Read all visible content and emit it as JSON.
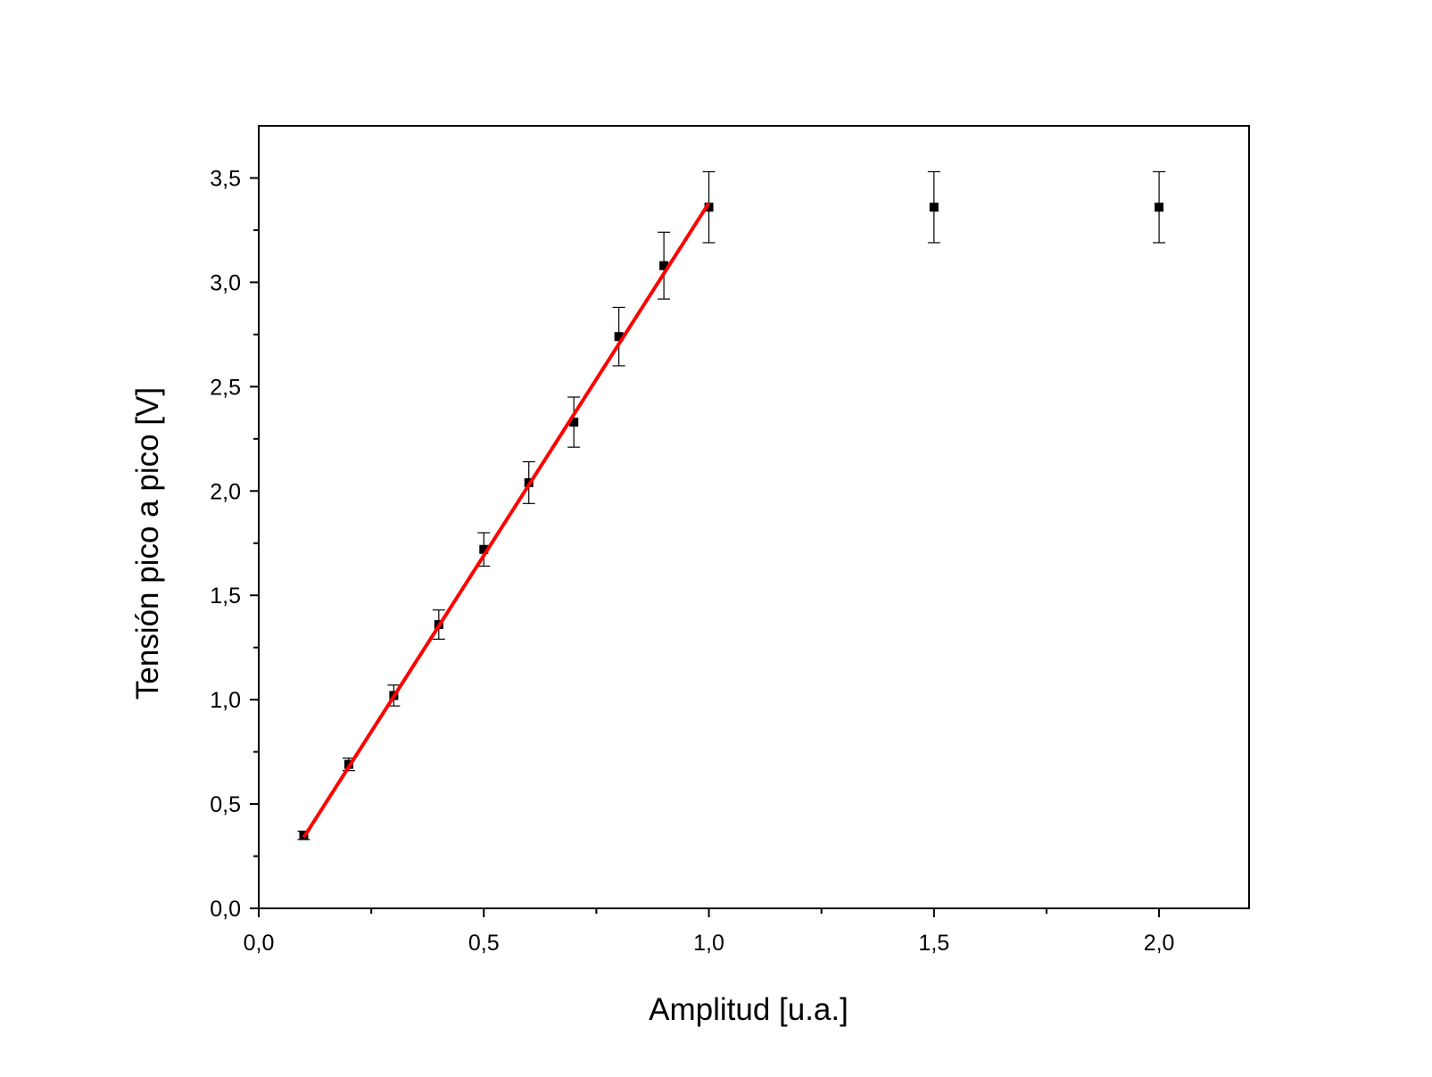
{
  "chart_data": {
    "type": "scatter",
    "title": "",
    "xlabel": "Amplitud [u.a.]",
    "ylabel": "Tensión pico a pico [V]",
    "xlim": [
      0.0,
      2.2
    ],
    "ylim": [
      0.0,
      3.75
    ],
    "x_ticks": [
      {
        "value": 0.0,
        "label": "0,0"
      },
      {
        "value": 0.5,
        "label": "0,5"
      },
      {
        "value": 1.0,
        "label": "1,0"
      },
      {
        "value": 1.5,
        "label": "1,5"
      },
      {
        "value": 2.0,
        "label": "2,0"
      }
    ],
    "x_minor_ticks": [
      0.25,
      0.75,
      1.25,
      1.75
    ],
    "y_ticks": [
      {
        "value": 0.0,
        "label": "0,0"
      },
      {
        "value": 0.5,
        "label": "0,5"
      },
      {
        "value": 1.0,
        "label": "1,0"
      },
      {
        "value": 1.5,
        "label": "1,5"
      },
      {
        "value": 2.0,
        "label": "2,0"
      },
      {
        "value": 2.5,
        "label": "2,5"
      },
      {
        "value": 3.0,
        "label": "3,0"
      },
      {
        "value": 3.5,
        "label": "3,5"
      }
    ],
    "y_minor_ticks": [
      0.25,
      0.75,
      1.25,
      1.75,
      2.25,
      2.75,
      3.25
    ],
    "grid": false,
    "legend": "none",
    "series": [
      {
        "type": "scatter",
        "color": "#000000",
        "points": [
          {
            "x": 0.1,
            "y": 0.35,
            "err": 0.02
          },
          {
            "x": 0.2,
            "y": 0.69,
            "err": 0.03
          },
          {
            "x": 0.3,
            "y": 1.02,
            "err": 0.05
          },
          {
            "x": 0.4,
            "y": 1.36,
            "err": 0.07
          },
          {
            "x": 0.5,
            "y": 1.72,
            "err": 0.08
          },
          {
            "x": 0.6,
            "y": 2.04,
            "err": 0.1
          },
          {
            "x": 0.7,
            "y": 2.33,
            "err": 0.12
          },
          {
            "x": 0.8,
            "y": 2.74,
            "err": 0.14
          },
          {
            "x": 0.9,
            "y": 3.08,
            "err": 0.16
          },
          {
            "x": 1.0,
            "y": 3.36,
            "err": 0.17
          },
          {
            "x": 1.5,
            "y": 3.36,
            "err": 0.17
          },
          {
            "x": 2.0,
            "y": 3.36,
            "err": 0.17
          }
        ]
      },
      {
        "type": "line",
        "color": "#ff0000",
        "x": [
          0.1,
          1.0
        ],
        "y": [
          0.34,
          3.38
        ]
      }
    ]
  }
}
